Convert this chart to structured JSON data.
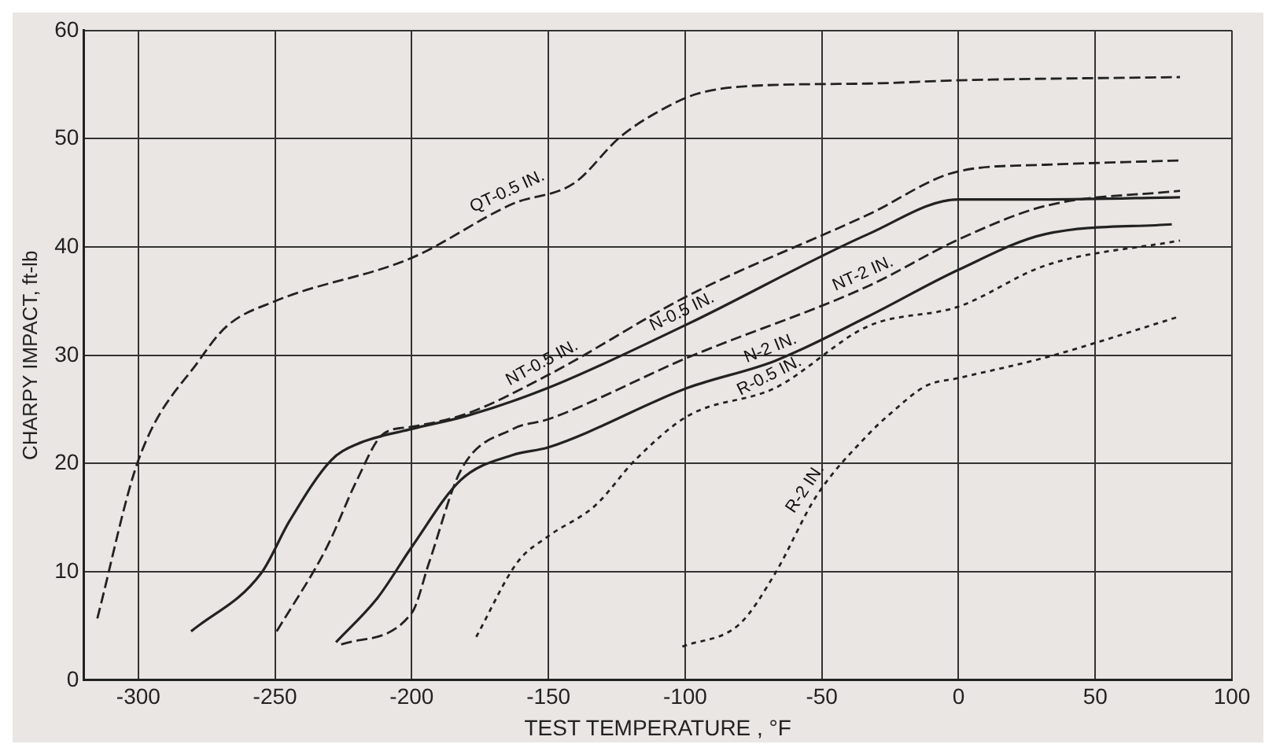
{
  "chart_data": {
    "type": "line",
    "xlabel": "TEST TEMPERATURE , °F",
    "ylabel": "CHARPY IMPACT, ft-lb",
    "xlim": [
      -320,
      100
    ],
    "ylim": [
      0,
      60
    ],
    "xticks": [
      -300,
      -250,
      -200,
      -150,
      -100,
      -50,
      0,
      50,
      100
    ],
    "yticks": [
      0,
      10,
      20,
      30,
      40,
      50,
      60
    ],
    "grid": true,
    "legend": false,
    "marker": "none",
    "series": [
      {
        "color": "#222222",
        "line_style": "dashed",
        "x": [
          -315,
          -300,
          -277,
          -267.6,
          -250,
          -200,
          -163,
          -140.6,
          -123.6,
          -104.7,
          -95,
          -74.5,
          -33,
          0,
          81
        ],
        "values": [
          5.7,
          20.3,
          29.8,
          32.7,
          35,
          39,
          44,
          45.9,
          50.2,
          53.2,
          54.2,
          54.9,
          55.1,
          55.4,
          55.7
        ]
      },
      {
        "color": "#222222",
        "line_style": "dashed",
        "x": [
          -249.4,
          -231,
          -220,
          -210.6,
          -200,
          -180,
          -150,
          -99,
          -33,
          0,
          31.8,
          81
        ],
        "values": [
          4.5,
          12.3,
          18.5,
          22.7,
          23.4,
          24.6,
          28.2,
          35.5,
          43,
          47,
          47.6,
          48
        ]
      },
      {
        "color": "#222222",
        "line_style": "solid",
        "x": [
          -280.7,
          -255,
          -244.7,
          -229.5,
          -220,
          -200,
          -180,
          -150,
          -99,
          -33,
          0,
          32,
          81
        ],
        "values": [
          4.5,
          9.9,
          14.7,
          20.3,
          21.8,
          23.2,
          24.4,
          27,
          32.9,
          41.2,
          44.4,
          44.4,
          44.6
        ]
      },
      {
        "color": "#222222",
        "line_style": "dashed",
        "x": [
          -225.8,
          -200,
          -193.6,
          -182,
          -163,
          -150,
          -99,
          -33,
          0,
          31.8,
          81
        ],
        "values": [
          3.3,
          6.2,
          10.9,
          19.4,
          23.2,
          24.1,
          29.8,
          36.4,
          40.7,
          43.8,
          45.2
        ]
      },
      {
        "color": "#222222",
        "line_style": "solid",
        "x": [
          -227.7,
          -212.5,
          -200,
          -182,
          -163,
          -150,
          -99,
          -67,
          -33,
          0,
          31.8,
          78
        ],
        "values": [
          3.5,
          7.6,
          12.3,
          18.5,
          20.8,
          21.5,
          27,
          29.5,
          33.6,
          37.9,
          41.2,
          42.1
        ]
      },
      {
        "color": "#222222",
        "line_style": "dotted",
        "x": [
          -176.4,
          -161.3,
          -150,
          -133,
          -118,
          -99,
          -67,
          -33,
          0,
          31.8,
          81
        ],
        "values": [
          4,
          10.9,
          13.3,
          16.1,
          20.4,
          24.4,
          27,
          32.7,
          34.5,
          38.3,
          40.6
        ]
      },
      {
        "color": "#222222",
        "line_style": "dotted",
        "x": [
          -101,
          -80,
          -67,
          -52,
          -33,
          -25,
          -11.7,
          0,
          31.8,
          81
        ],
        "values": [
          3.1,
          5.2,
          9.9,
          17,
          22.7,
          24.6,
          27.2,
          27.9,
          29.8,
          33.6
        ]
      }
    ],
    "annotations": [
      {
        "text": "QT-0.5 IN.",
        "x": -163,
        "y": 44
      },
      {
        "text": "NT-0.5 IN.",
        "x": -150,
        "y": 28.2
      },
      {
        "text": "N-0.5 IN.",
        "x": -99,
        "y": 32.9
      },
      {
        "text": "NT-2 IN.",
        "x": -33,
        "y": 36.4
      },
      {
        "text": "N-2 IN.",
        "x": -67,
        "y": 29.5
      },
      {
        "text": "R-0.5 IN.",
        "x": -67,
        "y": 27
      },
      {
        "text": "R-2 IN.",
        "x": -52,
        "y": 17
      }
    ]
  }
}
